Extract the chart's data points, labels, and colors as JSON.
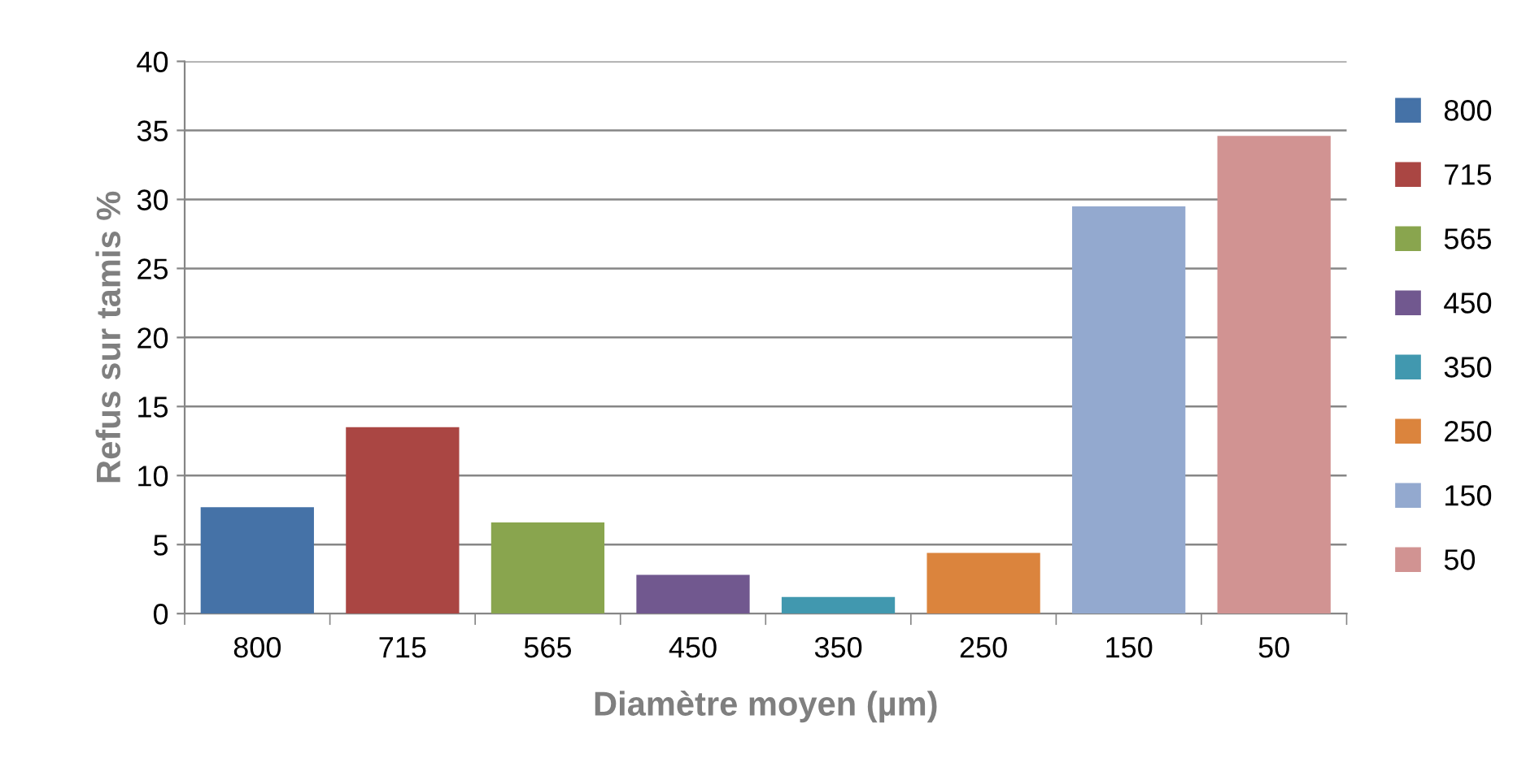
{
  "chart_data": {
    "type": "bar",
    "xlabel": "Diamètre moyen (µm)",
    "ylabel": "Refus sur tamis %",
    "categories": [
      "800",
      "715",
      "565",
      "450",
      "350",
      "250",
      "150",
      "50"
    ],
    "series": [
      {
        "name": "800",
        "color": "#4572a7",
        "values": [
          7.7,
          null,
          null,
          null,
          null,
          null,
          null,
          null
        ]
      },
      {
        "name": "715",
        "color": "#aa4643",
        "values": [
          null,
          13.5,
          null,
          null,
          null,
          null,
          null,
          null
        ]
      },
      {
        "name": "565",
        "color": "#89a54e",
        "values": [
          null,
          null,
          6.6,
          null,
          null,
          null,
          null,
          null
        ]
      },
      {
        "name": "450",
        "color": "#71588f",
        "values": [
          null,
          null,
          null,
          2.8,
          null,
          null,
          null,
          null
        ]
      },
      {
        "name": "350",
        "color": "#4198af",
        "values": [
          null,
          null,
          null,
          null,
          1.2,
          null,
          null,
          null
        ]
      },
      {
        "name": "250",
        "color": "#db843d",
        "values": [
          null,
          null,
          null,
          null,
          null,
          4.4,
          null,
          null
        ]
      },
      {
        "name": "150",
        "color": "#93a9cf",
        "values": [
          null,
          null,
          null,
          null,
          null,
          null,
          29.5,
          null
        ]
      },
      {
        "name": "50",
        "color": "#d19392",
        "values": [
          null,
          null,
          null,
          null,
          null,
          null,
          null,
          34.6
        ]
      }
    ],
    "ylim": [
      0,
      40
    ],
    "yticks": [
      0,
      5,
      10,
      15,
      20,
      25,
      30,
      35,
      40
    ],
    "grid": "y",
    "legend": "right"
  }
}
